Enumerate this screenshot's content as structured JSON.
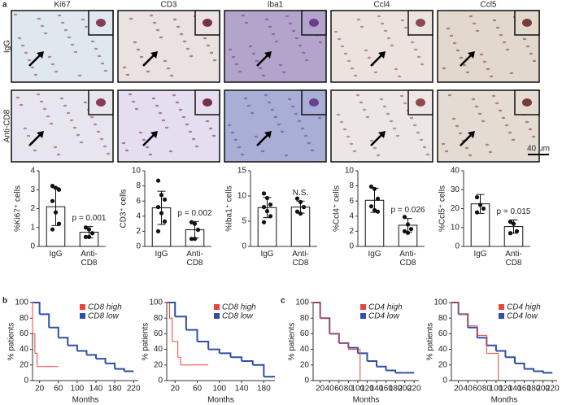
{
  "panel_labels": [
    "a",
    "b",
    "c"
  ],
  "micrographs": {
    "columns": [
      "Ki67",
      "CD3",
      "Iba1",
      "Ccl4",
      "Ccl5"
    ],
    "rows": [
      "IgG",
      "Anti-CD8"
    ],
    "scale_bar": "40 μm"
  },
  "chart_data": [
    {
      "type": "bar",
      "ylabel": "%Ki67⁺ cells",
      "categories": [
        "IgG",
        "Anti-CD8"
      ],
      "values": [
        2.1,
        0.75
      ],
      "errors": [
        1.0,
        0.3
      ],
      "points": [
        [
          3.2,
          3.1,
          3.0,
          2.4,
          1.8,
          1.2,
          0.9
        ],
        [
          1.0,
          0.9,
          0.7,
          0.5,
          0.5
        ]
      ],
      "ylim": [
        0,
        4
      ],
      "yticks": [
        0,
        1,
        2,
        3,
        4
      ],
      "annotation": "p = 0.001"
    },
    {
      "type": "bar",
      "ylabel": "CD3⁺ cells",
      "categories": [
        "IgG",
        "Anti-CD8"
      ],
      "values": [
        5.1,
        2.2
      ],
      "errors": [
        2.2,
        1.1
      ],
      "points": [
        [
          8.7,
          6.8,
          6.2,
          5.2,
          4.4,
          3.3,
          2.0
        ],
        [
          3.2,
          3.0,
          2.2,
          1.0,
          1.0
        ]
      ],
      "ylim": [
        0,
        10
      ],
      "yticks": [
        0,
        2,
        4,
        6,
        8,
        10
      ],
      "annotation": "p = 0.002"
    },
    {
      "type": "bar",
      "ylabel": "%Iba1⁺ cells",
      "categories": [
        "IgG",
        "Anti-CD8"
      ],
      "values": [
        7.7,
        7.8
      ],
      "errors": [
        2.0,
        1.2
      ],
      "points": [
        [
          10.5,
          9.6,
          8.3,
          7.8,
          7.0,
          6.0,
          4.8
        ],
        [
          9.5,
          8.8,
          7.8,
          6.9,
          6.5
        ]
      ],
      "ylim": [
        0,
        15
      ],
      "yticks": [
        0,
        5,
        10,
        15
      ],
      "annotation": "N.S."
    },
    {
      "type": "bar",
      "ylabel": "%Ccl4⁺ cells",
      "categories": [
        "IgG",
        "Anti-CD8"
      ],
      "values": [
        6.1,
        2.8
      ],
      "errors": [
        1.6,
        0.9
      ],
      "points": [
        [
          7.9,
          7.6,
          6.3,
          5.3,
          4.8,
          4.6
        ],
        [
          3.9,
          2.9,
          2.3,
          2.0,
          1.8
        ]
      ],
      "ylim": [
        0,
        10
      ],
      "yticks": [
        0,
        2,
        4,
        6,
        8,
        10
      ],
      "annotation": "p = 0.026"
    },
    {
      "type": "bar",
      "ylabel": "%Ccl5⁺ cells",
      "categories": [
        "IgG",
        "Anti-CD8"
      ],
      "values": [
        22.5,
        10.5
      ],
      "errors": [
        5.0,
        3.5
      ],
      "points": [
        [
          26,
          22,
          20,
          18
        ],
        [
          13,
          12,
          8,
          7
        ]
      ],
      "ylim": [
        0,
        40
      ],
      "yticks": [
        0,
        10,
        20,
        30,
        40
      ],
      "annotation": "p = 0.015"
    },
    {
      "type": "line",
      "xlabel": "Months",
      "ylabel": "% patients",
      "xlim": [
        5,
        230
      ],
      "xticks": [
        20,
        60,
        100,
        140,
        180,
        220
      ],
      "ylim": [
        0,
        100
      ],
      "yticks": [
        0,
        20,
        40,
        60,
        80,
        100
      ],
      "series": [
        {
          "name": "CD8 high",
          "color": "#e8453c",
          "x": [
            0,
            5,
            10,
            15,
            60
          ],
          "values": [
            100,
            60,
            35,
            18,
            18
          ]
        },
        {
          "name": "CD8 low",
          "color": "#2f4fa8",
          "x": [
            0,
            20,
            40,
            60,
            80,
            100,
            120,
            140,
            160,
            180,
            200,
            220
          ],
          "values": [
            100,
            85,
            68,
            55,
            45,
            38,
            33,
            28,
            22,
            15,
            12,
            12
          ]
        }
      ]
    },
    {
      "type": "line",
      "xlabel": "Months",
      "ylabel": "% patients",
      "xlim": [
        5,
        200
      ],
      "xticks": [
        20,
        60,
        100,
        140,
        180
      ],
      "ylim": [
        0,
        100
      ],
      "yticks": [
        0,
        20,
        40,
        60,
        80,
        100
      ],
      "series": [
        {
          "name": "CD8 high",
          "color": "#e8453c",
          "x": [
            0,
            10,
            15,
            25,
            30,
            40,
            80
          ],
          "values": [
            100,
            80,
            50,
            30,
            20,
            20,
            20
          ]
        },
        {
          "name": "CD8 low",
          "color": "#2f4fa8",
          "x": [
            0,
            20,
            40,
            60,
            80,
            100,
            120,
            140,
            160,
            180,
            200
          ],
          "values": [
            100,
            82,
            65,
            50,
            40,
            35,
            30,
            25,
            20,
            5,
            5
          ]
        }
      ]
    },
    {
      "type": "line",
      "xlabel": "Months",
      "ylabel": "% patients",
      "xlim": [
        5,
        230
      ],
      "xticks": [
        20,
        40,
        60,
        80,
        100,
        120,
        140,
        160,
        180,
        200,
        220
      ],
      "ylim": [
        0,
        100
      ],
      "yticks": [
        0,
        20,
        40,
        60,
        80,
        100
      ],
      "series": [
        {
          "name": "CD4 high",
          "color": "#e8453c",
          "x": [
            0,
            20,
            40,
            60,
            80,
            100,
            105
          ],
          "values": [
            100,
            80,
            60,
            48,
            40,
            40,
            0
          ]
        },
        {
          "name": "CD4 low",
          "color": "#2f4fa8",
          "x": [
            0,
            20,
            40,
            60,
            80,
            100,
            120,
            140,
            160,
            180,
            200,
            220
          ],
          "values": [
            100,
            80,
            60,
            48,
            42,
            35,
            25,
            18,
            13,
            10,
            10,
            10
          ]
        }
      ]
    },
    {
      "type": "line",
      "xlabel": "Months",
      "ylabel": "% patients",
      "xlim": [
        5,
        230
      ],
      "xticks": [
        20,
        40,
        60,
        80,
        100,
        120,
        140,
        160,
        180,
        200,
        220
      ],
      "ylim": [
        0,
        100
      ],
      "yticks": [
        0,
        20,
        40,
        60,
        80,
        100
      ],
      "series": [
        {
          "name": "CD4 high",
          "color": "#e8453c",
          "x": [
            0,
            20,
            40,
            60,
            80,
            100,
            105
          ],
          "values": [
            100,
            85,
            70,
            58,
            35,
            35,
            0
          ]
        },
        {
          "name": "CD4 low",
          "color": "#2f4fa8",
          "x": [
            0,
            20,
            40,
            60,
            80,
            100,
            120,
            140,
            160,
            180,
            200,
            220
          ],
          "values": [
            100,
            85,
            68,
            55,
            45,
            38,
            30,
            22,
            15,
            12,
            10,
            10
          ]
        }
      ]
    }
  ]
}
